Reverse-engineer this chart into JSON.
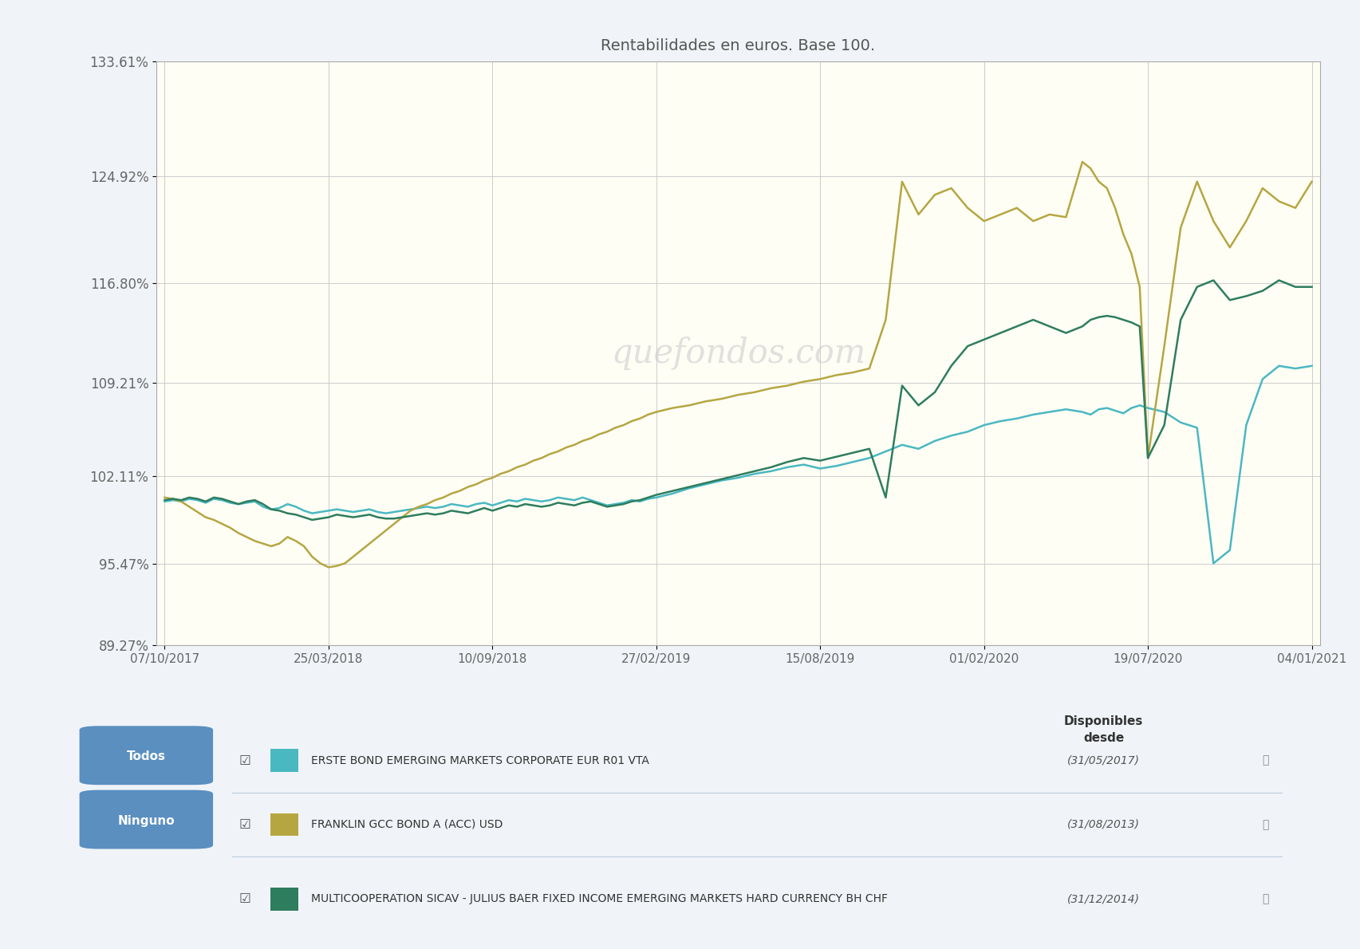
{
  "title": "Rentabilidades en euros. Base 100.",
  "title_color": "#666666",
  "plot_bg_color": "#fffef5",
  "outer_bg_color": "#f0f4f8",
  "watermark": "quefondos.com",
  "yticks": [
    89.27,
    95.47,
    102.11,
    109.21,
    116.8,
    124.92,
    133.61
  ],
  "ytick_labels": [
    "89.27%",
    "95.47%",
    "102.11%",
    "109.21%",
    "116.80%",
    "124.92%",
    "133.61%"
  ],
  "xtick_labels": [
    "07/10/2017",
    "25/03/2018",
    "10/09/2018",
    "27/02/2019",
    "15/08/2019",
    "01/02/2020",
    "19/07/2020",
    "04/01/2021"
  ],
  "xtick_positions": [
    0,
    1,
    2,
    3,
    4,
    5,
    6,
    7
  ],
  "series": [
    {
      "name": "ERSTE BOND EMERGING MARKETS CORPORATE EUR R01 VTA",
      "color": "#4ab8c1",
      "available_since": "(31/05/2017)",
      "x": [
        0.0,
        0.05,
        0.1,
        0.15,
        0.2,
        0.25,
        0.3,
        0.35,
        0.4,
        0.45,
        0.5,
        0.55,
        0.6,
        0.65,
        0.7,
        0.75,
        0.8,
        0.85,
        0.9,
        0.95,
        1.0,
        1.05,
        1.1,
        1.15,
        1.2,
        1.25,
        1.3,
        1.35,
        1.4,
        1.45,
        1.5,
        1.55,
        1.6,
        1.65,
        1.7,
        1.75,
        1.8,
        1.85,
        1.9,
        1.95,
        2.0,
        2.05,
        2.1,
        2.15,
        2.2,
        2.25,
        2.3,
        2.35,
        2.4,
        2.45,
        2.5,
        2.55,
        2.6,
        2.65,
        2.7,
        2.75,
        2.8,
        2.85,
        2.9,
        2.95,
        3.0,
        3.1,
        3.2,
        3.3,
        3.4,
        3.5,
        3.6,
        3.7,
        3.8,
        3.9,
        4.0,
        4.1,
        4.2,
        4.3,
        4.4,
        4.5,
        4.6,
        4.7,
        4.8,
        4.9,
        5.0,
        5.1,
        5.2,
        5.3,
        5.4,
        5.5,
        5.6,
        5.65,
        5.7,
        5.75,
        5.8,
        5.85,
        5.9,
        5.95,
        6.0,
        6.1,
        6.2,
        6.3,
        6.4,
        6.5,
        6.6,
        6.7,
        6.8,
        6.9,
        7.0
      ],
      "y": [
        100.2,
        100.3,
        100.2,
        100.4,
        100.3,
        100.1,
        100.4,
        100.3,
        100.1,
        100.0,
        100.1,
        100.2,
        99.8,
        99.6,
        99.7,
        100.0,
        99.8,
        99.5,
        99.3,
        99.4,
        99.5,
        99.6,
        99.5,
        99.4,
        99.5,
        99.6,
        99.4,
        99.3,
        99.4,
        99.5,
        99.6,
        99.7,
        99.8,
        99.7,
        99.8,
        100.0,
        99.9,
        99.8,
        100.0,
        100.1,
        99.9,
        100.1,
        100.3,
        100.2,
        100.4,
        100.3,
        100.2,
        100.3,
        100.5,
        100.4,
        100.3,
        100.5,
        100.3,
        100.1,
        99.9,
        100.0,
        100.1,
        100.3,
        100.2,
        100.4,
        100.5,
        100.8,
        101.2,
        101.5,
        101.8,
        102.0,
        102.3,
        102.5,
        102.8,
        103.0,
        102.7,
        102.9,
        103.2,
        103.5,
        104.0,
        104.5,
        104.2,
        104.8,
        105.2,
        105.5,
        106.0,
        106.3,
        106.5,
        106.8,
        107.0,
        107.2,
        107.0,
        106.8,
        107.2,
        107.3,
        107.1,
        106.9,
        107.3,
        107.5,
        107.3,
        107.0,
        106.2,
        105.8,
        95.5,
        96.5,
        106.0,
        109.5,
        110.5,
        110.3,
        110.5
      ]
    },
    {
      "name": "FRANKLIN GCC BOND A (ACC) USD",
      "color": "#b5a642",
      "available_since": "(31/08/2013)",
      "x": [
        0.0,
        0.05,
        0.1,
        0.15,
        0.2,
        0.25,
        0.3,
        0.35,
        0.4,
        0.45,
        0.5,
        0.55,
        0.6,
        0.65,
        0.7,
        0.75,
        0.8,
        0.85,
        0.9,
        0.95,
        1.0,
        1.05,
        1.1,
        1.15,
        1.2,
        1.25,
        1.3,
        1.35,
        1.4,
        1.45,
        1.5,
        1.55,
        1.6,
        1.65,
        1.7,
        1.75,
        1.8,
        1.85,
        1.9,
        1.95,
        2.0,
        2.05,
        2.1,
        2.15,
        2.2,
        2.25,
        2.3,
        2.35,
        2.4,
        2.45,
        2.5,
        2.55,
        2.6,
        2.65,
        2.7,
        2.75,
        2.8,
        2.85,
        2.9,
        2.95,
        3.0,
        3.1,
        3.2,
        3.3,
        3.4,
        3.5,
        3.6,
        3.7,
        3.8,
        3.9,
        4.0,
        4.1,
        4.2,
        4.3,
        4.4,
        4.5,
        4.6,
        4.7,
        4.8,
        4.9,
        5.0,
        5.1,
        5.2,
        5.3,
        5.4,
        5.5,
        5.6,
        5.65,
        5.7,
        5.75,
        5.8,
        5.85,
        5.9,
        5.95,
        6.0,
        6.1,
        6.2,
        6.3,
        6.4,
        6.5,
        6.6,
        6.7,
        6.8,
        6.9,
        7.0
      ],
      "y": [
        100.5,
        100.4,
        100.2,
        99.8,
        99.4,
        99.0,
        98.8,
        98.5,
        98.2,
        97.8,
        97.5,
        97.2,
        97.0,
        96.8,
        97.0,
        97.5,
        97.2,
        96.8,
        96.0,
        95.5,
        95.2,
        95.3,
        95.5,
        96.0,
        96.5,
        97.0,
        97.5,
        98.0,
        98.5,
        99.0,
        99.5,
        99.8,
        100.0,
        100.3,
        100.5,
        100.8,
        101.0,
        101.3,
        101.5,
        101.8,
        102.0,
        102.3,
        102.5,
        102.8,
        103.0,
        103.3,
        103.5,
        103.8,
        104.0,
        104.3,
        104.5,
        104.8,
        105.0,
        105.3,
        105.5,
        105.8,
        106.0,
        106.3,
        106.5,
        106.8,
        107.0,
        107.3,
        107.5,
        107.8,
        108.0,
        108.3,
        108.5,
        108.8,
        109.0,
        109.3,
        109.5,
        109.8,
        110.0,
        110.3,
        114.0,
        124.5,
        122.0,
        123.5,
        124.0,
        122.5,
        121.5,
        122.0,
        122.5,
        121.5,
        122.0,
        121.8,
        126.0,
        125.5,
        124.5,
        124.0,
        122.5,
        120.5,
        119.0,
        116.5,
        103.5,
        112.0,
        121.0,
        124.5,
        121.5,
        119.5,
        121.5,
        124.0,
        123.0,
        122.5,
        124.5
      ]
    },
    {
      "name": "MULTICOOPERATION SICAV - JULIUS BAER FIXED INCOME EMERGING MARKETS HARD CURRENCY BH CHF",
      "color": "#2e7d5e",
      "available_since": "(31/12/2014)",
      "x": [
        0.0,
        0.05,
        0.1,
        0.15,
        0.2,
        0.25,
        0.3,
        0.35,
        0.4,
        0.45,
        0.5,
        0.55,
        0.6,
        0.65,
        0.7,
        0.75,
        0.8,
        0.85,
        0.9,
        0.95,
        1.0,
        1.05,
        1.1,
        1.15,
        1.2,
        1.25,
        1.3,
        1.35,
        1.4,
        1.45,
        1.5,
        1.55,
        1.6,
        1.65,
        1.7,
        1.75,
        1.8,
        1.85,
        1.9,
        1.95,
        2.0,
        2.05,
        2.1,
        2.15,
        2.2,
        2.25,
        2.3,
        2.35,
        2.4,
        2.45,
        2.5,
        2.55,
        2.6,
        2.65,
        2.7,
        2.75,
        2.8,
        2.85,
        2.9,
        2.95,
        3.0,
        3.1,
        3.2,
        3.3,
        3.4,
        3.5,
        3.6,
        3.7,
        3.8,
        3.9,
        4.0,
        4.1,
        4.2,
        4.3,
        4.4,
        4.5,
        4.6,
        4.7,
        4.8,
        4.9,
        5.0,
        5.1,
        5.2,
        5.3,
        5.4,
        5.5,
        5.6,
        5.65,
        5.7,
        5.75,
        5.8,
        5.85,
        5.9,
        5.95,
        6.0,
        6.1,
        6.2,
        6.3,
        6.4,
        6.5,
        6.6,
        6.7,
        6.8,
        6.9,
        7.0
      ],
      "y": [
        100.3,
        100.4,
        100.3,
        100.5,
        100.4,
        100.2,
        100.5,
        100.4,
        100.2,
        100.0,
        100.2,
        100.3,
        100.0,
        99.6,
        99.5,
        99.3,
        99.2,
        99.0,
        98.8,
        98.9,
        99.0,
        99.2,
        99.1,
        99.0,
        99.1,
        99.2,
        99.0,
        98.9,
        98.9,
        99.0,
        99.1,
        99.2,
        99.3,
        99.2,
        99.3,
        99.5,
        99.4,
        99.3,
        99.5,
        99.7,
        99.5,
        99.7,
        99.9,
        99.8,
        100.0,
        99.9,
        99.8,
        99.9,
        100.1,
        100.0,
        99.9,
        100.1,
        100.2,
        100.0,
        99.8,
        99.9,
        100.0,
        100.2,
        100.3,
        100.5,
        100.7,
        101.0,
        101.3,
        101.6,
        101.9,
        102.2,
        102.5,
        102.8,
        103.2,
        103.5,
        103.3,
        103.6,
        103.9,
        104.2,
        100.5,
        109.0,
        107.5,
        108.5,
        110.5,
        112.0,
        112.5,
        113.0,
        113.5,
        114.0,
        113.5,
        113.0,
        113.5,
        114.0,
        114.2,
        114.3,
        114.2,
        114.0,
        113.8,
        113.5,
        103.5,
        106.0,
        114.0,
        116.5,
        117.0,
        115.5,
        115.8,
        116.2,
        117.0,
        116.5,
        116.5
      ]
    }
  ],
  "legend": {
    "background_color": "#dce8f5",
    "border_color": "#a0bcd8",
    "title_disponibles": "Disponibles\ndesde",
    "todos_color": "#5a8fc0",
    "ninguno_color": "#5a8fc0"
  }
}
